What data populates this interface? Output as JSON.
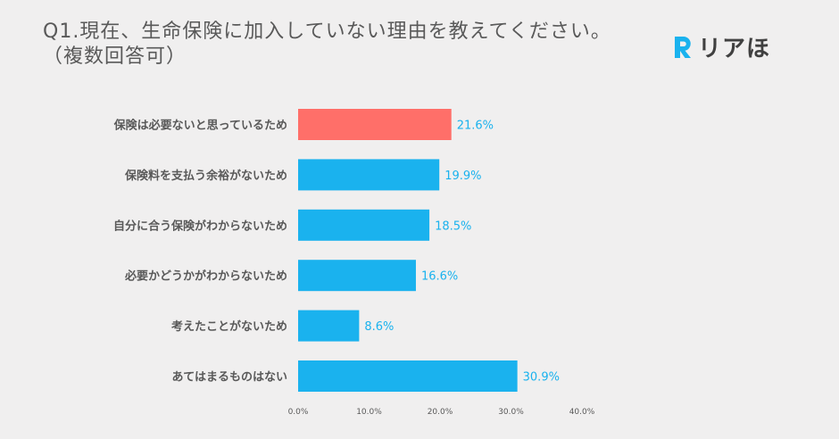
{
  "title": {
    "line1": "Q1.現在、生命保険に加入していない理由を教えてください。",
    "line2": "（複数回答可）"
  },
  "logo": {
    "text": "リアほ",
    "icon": "logo-r-mark-icon",
    "color": "#1ab2ee"
  },
  "colors": {
    "default_bar": "#1ab2ee",
    "highlight_bar": "#ff6f69",
    "value_label": "#1ab2ee"
  },
  "chart_data": {
    "type": "bar",
    "orientation": "horizontal",
    "categories": [
      "保険は必要ないと思っているため",
      "保険料を支払う余裕がないため",
      "自分に合う保険がわからないため",
      "必要かどうかがわからないため",
      "考えたことがないため",
      "あてはまるものはない"
    ],
    "values": [
      21.6,
      19.9,
      18.5,
      16.6,
      8.6,
      30.9
    ],
    "value_labels": [
      "21.6%",
      "19.9%",
      "18.5%",
      "16.6%",
      "8.6%",
      "30.9%"
    ],
    "highlight_index": 0,
    "xlim": [
      0,
      40
    ],
    "xticks": [
      0,
      10,
      20,
      30,
      40
    ],
    "xtick_labels": [
      "0.0%",
      "10.0%",
      "20.0%",
      "30.0%",
      "40.0%"
    ],
    "grid": false,
    "legend": "none"
  }
}
